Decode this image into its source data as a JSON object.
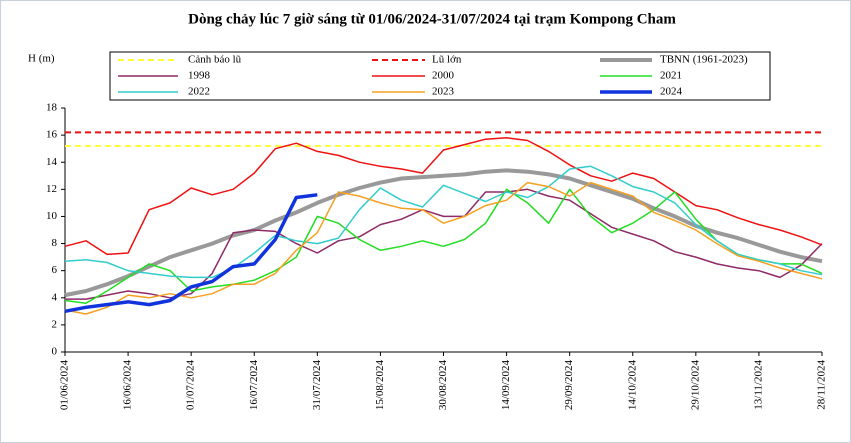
{
  "chart_data": {
    "type": "line",
    "title": "Dòng chảy lúc 7 giờ sáng từ 01/06/2024-31/07/2024 tại trạm Kompong Cham",
    "y_label": "H (m)",
    "x": [
      "01/06/2024",
      "06/06/2024",
      "11/06/2024",
      "16/06/2024",
      "21/06/2024",
      "26/06/2024",
      "01/07/2024",
      "06/07/2024",
      "11/07/2024",
      "16/07/2024",
      "21/07/2024",
      "26/07/2024",
      "31/07/2024",
      "05/08/2024",
      "10/08/2024",
      "15/08/2024",
      "20/08/2024",
      "25/08/2024",
      "30/08/2024",
      "04/09/2024",
      "09/09/2024",
      "14/09/2024",
      "19/09/2024",
      "24/09/2024",
      "29/09/2024",
      "04/10/2024",
      "09/10/2024",
      "14/10/2024",
      "19/10/2024",
      "24/10/2024",
      "29/10/2024",
      "03/11/2024",
      "08/11/2024",
      "13/11/2024",
      "18/11/2024",
      "23/11/2024",
      "28/11/2024"
    ],
    "xlim": [
      "01/06/2024",
      "28/11/2024"
    ],
    "xticks": [
      "01/06/2024",
      "16/06/2024",
      "01/07/2024",
      "16/07/2024",
      "31/07/2024",
      "15/08/2024",
      "30/08/2024",
      "14/09/2024",
      "29/09/2024",
      "14/10/2024",
      "29/10/2024",
      "13/11/2024",
      "28/11/2024"
    ],
    "ylim": [
      0,
      18
    ],
    "yticks": [
      0,
      2,
      4,
      6,
      8,
      10,
      12,
      14,
      16,
      18
    ],
    "grid": false,
    "hlines": [
      {
        "name": "Cảnh báo lũ",
        "color": "#ffff33",
        "value": 15.2
      },
      {
        "name": "Lũ lớn",
        "color": "#ee1111",
        "value": 16.2
      }
    ],
    "series": [
      {
        "name": "TBNN (1961-2023)",
        "color": "#999999",
        "width": 4,
        "values": [
          4.2,
          4.5,
          5.0,
          5.6,
          6.3,
          7.0,
          7.5,
          8.0,
          8.6,
          9.0,
          9.7,
          10.3,
          11.0,
          11.6,
          12.1,
          12.5,
          12.8,
          12.9,
          13.0,
          13.1,
          13.3,
          13.4,
          13.3,
          13.1,
          12.8,
          12.3,
          11.8,
          11.3,
          10.6,
          10.0,
          9.3,
          8.8,
          8.4,
          7.9,
          7.4,
          7.0,
          6.7
        ]
      },
      {
        "name": "1998",
        "color": "#8e2a66",
        "width": 1.5,
        "values": [
          3.9,
          3.9,
          4.2,
          4.5,
          4.3,
          4.0,
          4.3,
          5.8,
          8.8,
          9.0,
          8.9,
          8.0,
          7.3,
          8.2,
          8.5,
          9.4,
          9.8,
          10.5,
          10.0,
          10.0,
          11.8,
          11.8,
          12.0,
          11.5,
          11.2,
          10.2,
          9.2,
          8.7,
          8.2,
          7.4,
          7.0,
          6.5,
          6.2,
          6.0,
          5.5,
          6.4,
          8.0
        ]
      },
      {
        "name": "2000",
        "color": "#ee1111",
        "width": 1.5,
        "values": [
          7.8,
          8.2,
          7.2,
          7.3,
          10.5,
          11.0,
          12.1,
          11.6,
          12.0,
          13.2,
          15.0,
          15.4,
          14.8,
          14.5,
          14.0,
          13.7,
          13.5,
          13.2,
          14.9,
          15.3,
          15.7,
          15.8,
          15.6,
          14.8,
          13.8,
          13.0,
          12.6,
          13.2,
          12.8,
          11.8,
          10.8,
          10.5,
          9.9,
          9.4,
          9.0,
          8.5,
          7.9
        ]
      },
      {
        "name": "2021",
        "color": "#22dd22",
        "width": 1.5,
        "values": [
          3.8,
          3.6,
          4.5,
          5.5,
          6.5,
          6.0,
          4.5,
          4.8,
          5.0,
          5.3,
          6.0,
          7.0,
          10.0,
          9.5,
          8.3,
          7.5,
          7.8,
          8.2,
          7.8,
          8.3,
          9.5,
          12.0,
          11.0,
          9.5,
          12.0,
          10.0,
          8.8,
          9.5,
          10.5,
          11.8,
          9.8,
          8.2,
          7.2,
          6.8,
          6.5,
          6.5,
          5.8
        ]
      },
      {
        "name": "2022",
        "color": "#33cccc",
        "width": 1.5,
        "values": [
          6.7,
          6.8,
          6.6,
          6.0,
          5.8,
          5.6,
          5.5,
          5.5,
          6.2,
          7.3,
          8.6,
          8.2,
          8.0,
          8.4,
          10.5,
          12.1,
          11.2,
          10.7,
          12.3,
          11.7,
          11.1,
          11.8,
          11.4,
          12.2,
          13.5,
          13.7,
          13.0,
          12.2,
          11.8,
          11.0,
          9.4,
          8.2,
          7.2,
          6.8,
          6.5,
          6.0,
          5.7
        ]
      },
      {
        "name": "2023",
        "color": "#f5a023",
        "width": 1.5,
        "values": [
          3.1,
          2.8,
          3.3,
          4.2,
          4.0,
          4.3,
          4.0,
          4.3,
          5.0,
          5.0,
          5.8,
          7.5,
          8.8,
          11.8,
          11.5,
          11.0,
          10.6,
          10.5,
          9.5,
          10.0,
          10.8,
          11.2,
          12.5,
          12.2,
          11.5,
          12.5,
          12.0,
          11.5,
          10.3,
          9.7,
          9.0,
          8.0,
          7.1,
          6.7,
          6.2,
          5.8,
          5.4
        ]
      },
      {
        "name": "2024",
        "color": "#1133dd",
        "width": 3.5,
        "values": [
          3.0,
          3.3,
          3.5,
          3.7,
          3.5,
          3.8,
          4.8,
          5.2,
          6.3,
          6.5,
          8.3,
          11.4,
          11.6,
          null,
          null,
          null,
          null,
          null,
          null,
          null,
          null,
          null,
          null,
          null,
          null,
          null,
          null,
          null,
          null,
          null,
          null,
          null,
          null,
          null,
          null,
          null,
          null
        ]
      }
    ]
  }
}
